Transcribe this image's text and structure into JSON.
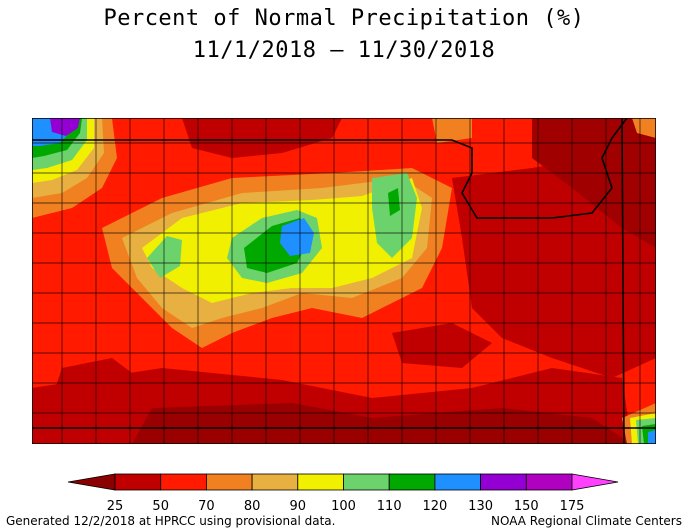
{
  "title": "Percent of Normal Precipitation (%)",
  "date_range": "11/1/2018 – 11/30/2018",
  "legend": {
    "ticks": [
      "25",
      "50",
      "70",
      "80",
      "90",
      "100",
      "110",
      "120",
      "130",
      "150",
      "175"
    ],
    "colors": {
      "below_25": "#8b0000",
      "25_50": "#c00000",
      "50_70": "#ff1a00",
      "70_80": "#f08020",
      "80_90": "#e8b040",
      "90_100": "#f0f000",
      "100_110": "#6cd36c",
      "110_120": "#00a800",
      "120_130": "#1e90ff",
      "130_150": "#9400d3",
      "150_175": "#b000c0",
      "above_175": "#ff40ff"
    }
  },
  "footer": {
    "generated": "Generated 12/2/2018 at HPRCC using provisional data.",
    "credit": "NOAA Regional Climate Centers"
  }
}
